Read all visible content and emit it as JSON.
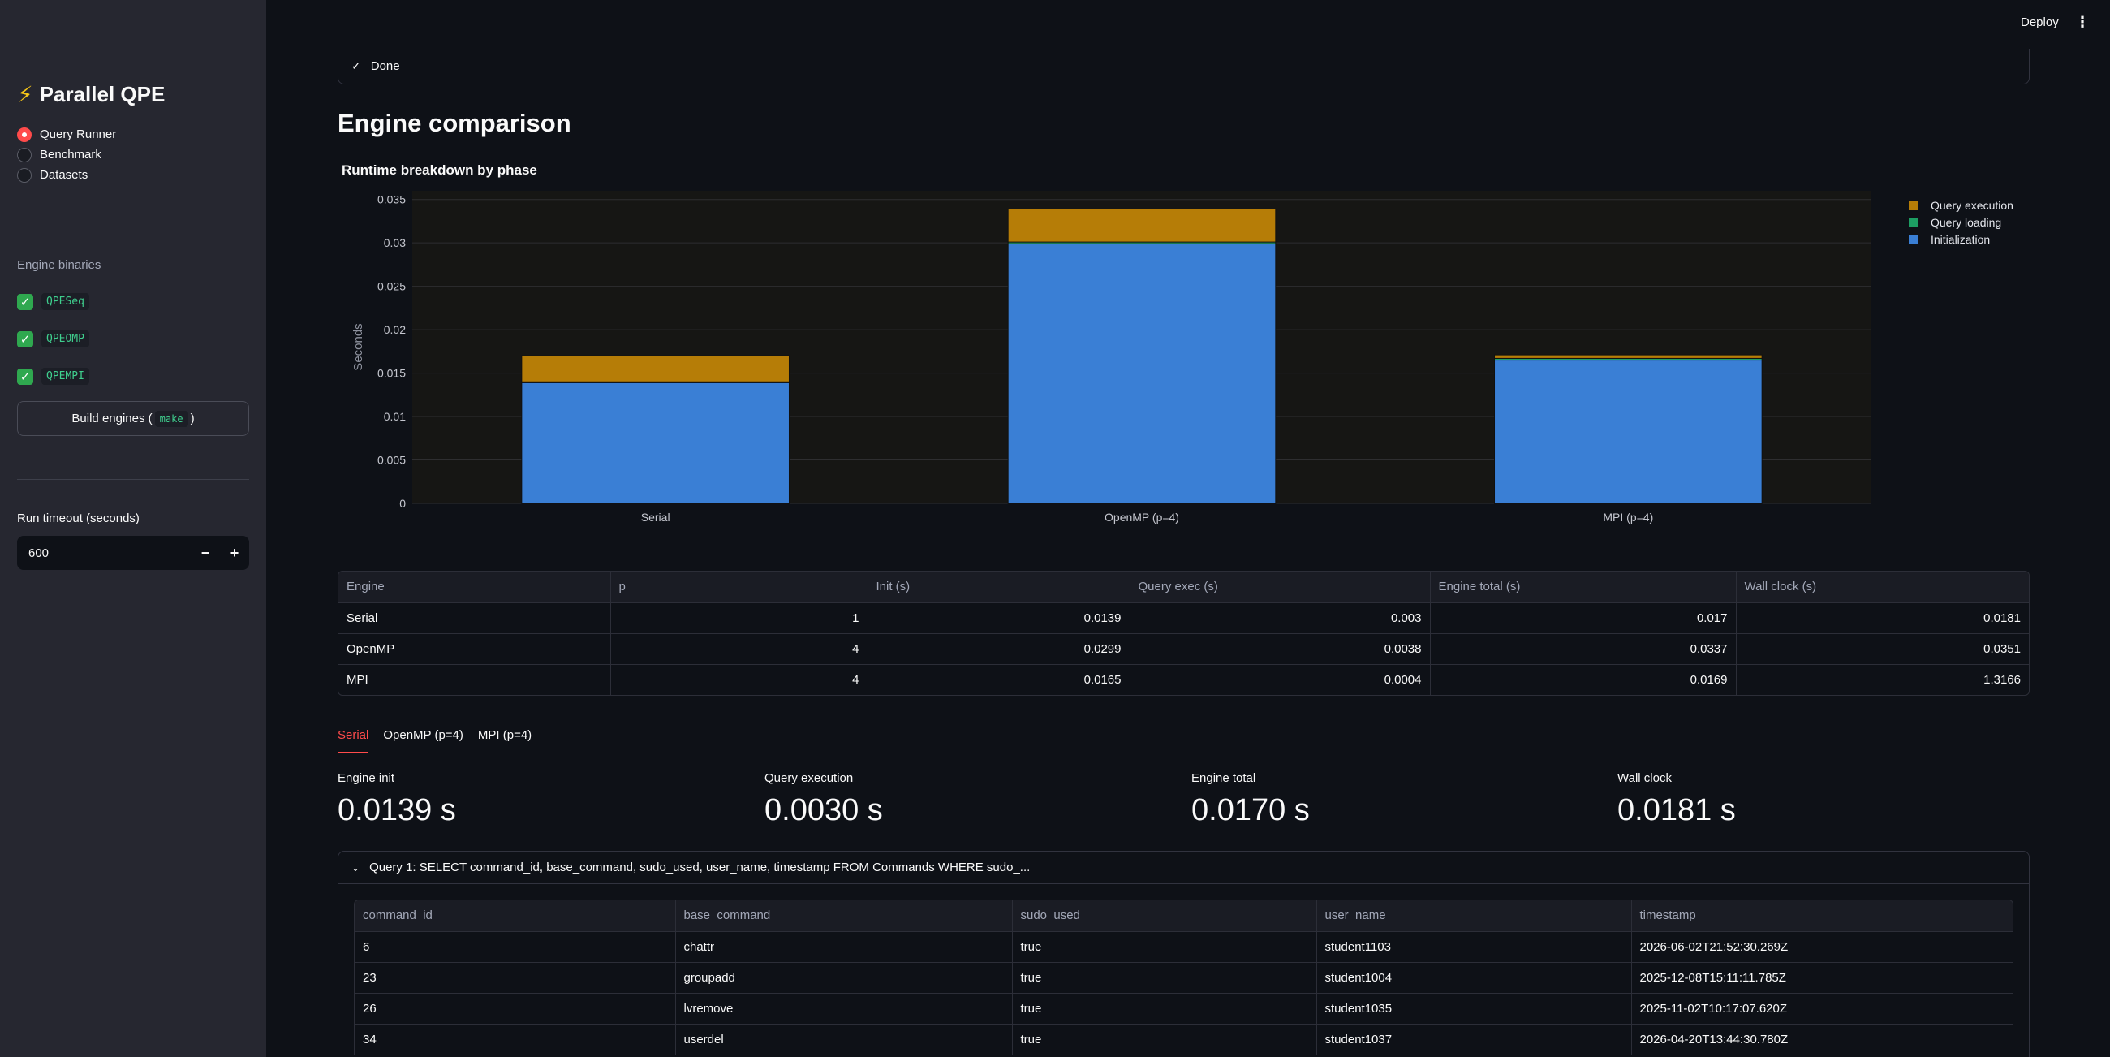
{
  "sidebar": {
    "brand_icon": "lightning-icon",
    "brand": "Parallel QPE",
    "nav": [
      {
        "label": "Query Runner",
        "selected": true
      },
      {
        "label": "Benchmark",
        "selected": false
      },
      {
        "label": "Datasets",
        "selected": false
      }
    ],
    "binaries_title": "Engine binaries",
    "binaries": [
      "QPESeq",
      "QPEOMP",
      "QPEMPI"
    ],
    "build_label_pre": "Build engines (",
    "build_code": "make",
    "build_label_post": ")",
    "timeout_label": "Run timeout (seconds)",
    "timeout_value": "600",
    "minus": "−",
    "plus": "+"
  },
  "header": {
    "deploy": "Deploy",
    "menu_icon": "kebab-icon"
  },
  "status": {
    "icon": "check-icon",
    "label": "Done"
  },
  "heading": "Engine comparison",
  "chart_title": "Runtime breakdown by phase",
  "chart_data": {
    "type": "bar",
    "stacked": true,
    "categories": [
      "Serial",
      "OpenMP (p=4)",
      "MPI (p=4)"
    ],
    "series": [
      {
        "name": "Initialization",
        "color": "#3a7fd5",
        "values": [
          0.0139,
          0.0299,
          0.0165
        ]
      },
      {
        "name": "Query loading",
        "color": "#1d9e63",
        "values": [
          0.0001,
          0.0002,
          0.0002
        ]
      },
      {
        "name": "Query execution",
        "color": "#b67d07",
        "values": [
          0.003,
          0.0038,
          0.0004
        ]
      }
    ],
    "legend_order": [
      "Query execution",
      "Query loading",
      "Initialization"
    ],
    "ylabel": "Seconds",
    "ylim": [
      0,
      0.036
    ],
    "yticks": [
      "0",
      "0.005",
      "0.01",
      "0.015",
      "0.02",
      "0.025",
      "0.03",
      "0.035"
    ],
    "ytick_values": [
      0,
      0.005,
      0.01,
      0.015,
      0.02,
      0.025,
      0.03,
      0.035
    ],
    "legend": "top-right",
    "grid": true
  },
  "summary_table": {
    "columns": [
      "Engine",
      "p",
      "Init (s)",
      "Query exec (s)",
      "Engine total (s)",
      "Wall clock (s)"
    ],
    "rows": [
      [
        "Serial",
        "1",
        "0.0139",
        "0.003",
        "0.017",
        "0.0181"
      ],
      [
        "OpenMP",
        "4",
        "0.0299",
        "0.0038",
        "0.0337",
        "0.0351"
      ],
      [
        "MPI",
        "4",
        "0.0165",
        "0.0004",
        "0.0169",
        "1.3166"
      ]
    ]
  },
  "tabs": [
    {
      "label": "Serial",
      "active": true
    },
    {
      "label": "OpenMP (p=4)",
      "active": false
    },
    {
      "label": "MPI (p=4)",
      "active": false
    }
  ],
  "metrics": [
    {
      "label": "Engine init",
      "value": "0.0139 s"
    },
    {
      "label": "Query execution",
      "value": "0.0030 s"
    },
    {
      "label": "Engine total",
      "value": "0.0170 s"
    },
    {
      "label": "Wall clock",
      "value": "0.0181 s"
    }
  ],
  "query": {
    "title": "Query 1: SELECT command_id, base_command, sudo_used, user_name, timestamp FROM Commands WHERE sudo_...",
    "columns": [
      "command_id",
      "base_command",
      "sudo_used",
      "user_name",
      "timestamp"
    ],
    "rows": [
      [
        "6",
        "chattr",
        "true",
        "student1103",
        "2026-06-02T21:52:30.269Z"
      ],
      [
        "23",
        "groupadd",
        "true",
        "student1004",
        "2025-12-08T15:11:11.785Z"
      ],
      [
        "26",
        "lvremove",
        "true",
        "student1035",
        "2025-11-02T10:17:07.620Z"
      ],
      [
        "34",
        "userdel",
        "true",
        "student1037",
        "2026-04-20T13:44:30.780Z"
      ]
    ]
  }
}
